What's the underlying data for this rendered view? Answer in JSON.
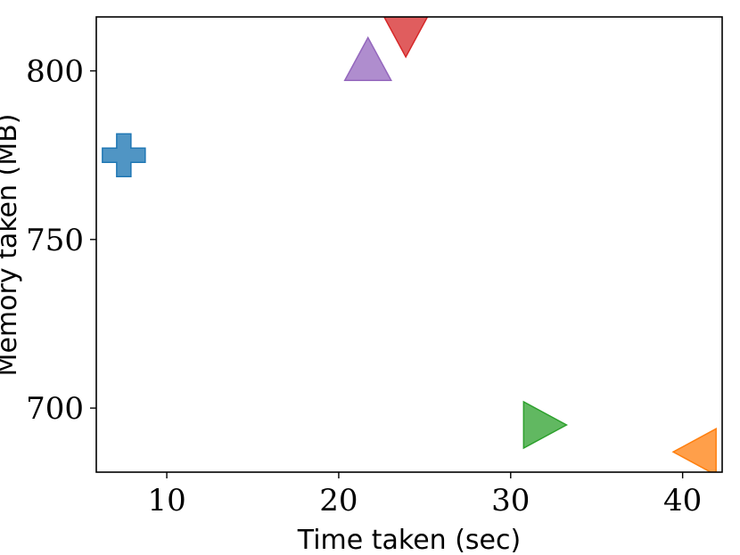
{
  "chart_data": {
    "type": "scatter",
    "title": "",
    "xlabel": "Time taken (sec)",
    "ylabel": "Memory taken (MB)",
    "xlim": [
      5.9,
      42.3
    ],
    "ylim": [
      681,
      816
    ],
    "xticks": [
      10,
      20,
      30,
      40
    ],
    "yticks": [
      700,
      750,
      800
    ],
    "grid": false,
    "legend": "none",
    "points": [
      {
        "x": 7.5,
        "y": 775,
        "marker": "plus",
        "color": "#1f77b4"
      },
      {
        "x": 21.7,
        "y": 803,
        "marker": "triangle-up",
        "color": "#9467bd"
      },
      {
        "x": 23.9,
        "y": 811,
        "marker": "triangle-down",
        "color": "#d62728"
      },
      {
        "x": 31.9,
        "y": 695,
        "marker": "triangle-right",
        "color": "#2ca02c"
      },
      {
        "x": 40.8,
        "y": 687,
        "marker": "triangle-left",
        "color": "#ff7f0e"
      }
    ]
  }
}
